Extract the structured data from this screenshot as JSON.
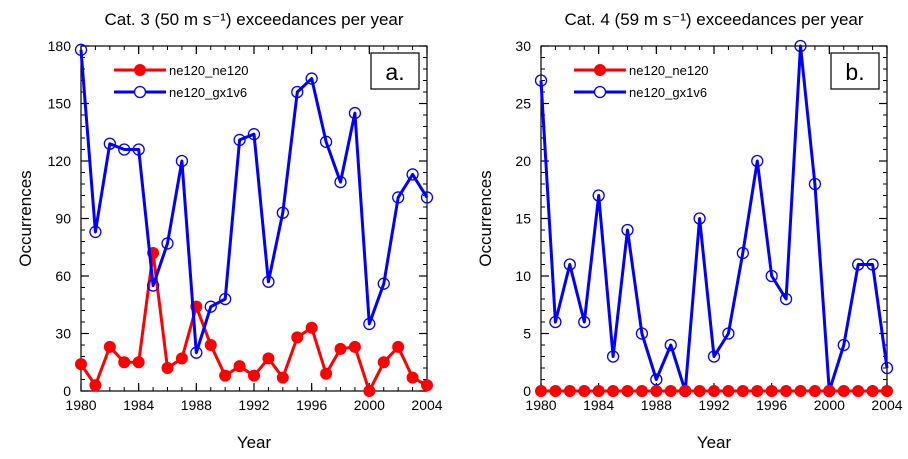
{
  "chart_data": [
    {
      "type": "line",
      "title": "Cat. 3 (50 m s⁻¹) exceedances per year",
      "xlabel": "Year",
      "ylabel": "Occurrences",
      "panel_label": "a.",
      "xlim": [
        1980,
        2004
      ],
      "ylim": [
        0,
        180
      ],
      "xticks": [
        1980,
        1984,
        1988,
        1992,
        1996,
        2000,
        2004
      ],
      "yticks": [
        0,
        30,
        60,
        90,
        120,
        150,
        180
      ],
      "legend_position": "top-left",
      "x": [
        1980,
        1981,
        1982,
        1983,
        1984,
        1985,
        1986,
        1987,
        1988,
        1989,
        1990,
        1991,
        1992,
        1993,
        1994,
        1995,
        1996,
        1997,
        1998,
        1999,
        2000,
        2001,
        2002,
        2003,
        2004
      ],
      "series": [
        {
          "name": "ne120_ne120",
          "color": "#ff0000",
          "marker": "filled-circle",
          "values": [
            14,
            3,
            23,
            15,
            15,
            72,
            12,
            17,
            44,
            24,
            8,
            13,
            8,
            17,
            7,
            28,
            33,
            9,
            22,
            23,
            0,
            15,
            23,
            7,
            3
          ]
        },
        {
          "name": "ne120_gx1v6",
          "color": "#0000ff",
          "marker": "open-circle",
          "values": [
            178,
            83,
            129,
            126,
            126,
            55,
            77,
            120,
            20,
            44,
            48,
            131,
            134,
            57,
            93,
            156,
            163,
            130,
            109,
            145,
            35,
            56,
            101,
            113,
            101
          ]
        }
      ]
    },
    {
      "type": "line",
      "title": "Cat. 4 (59 m s⁻¹) exceedances per year",
      "xlabel": "Year",
      "ylabel": "Occurrences",
      "panel_label": "b.",
      "xlim": [
        1980,
        2004
      ],
      "ylim": [
        0,
        30
      ],
      "xticks": [
        1980,
        1984,
        1988,
        1992,
        1996,
        2000,
        2004
      ],
      "yticks": [
        0,
        5,
        10,
        15,
        20,
        25,
        30
      ],
      "legend_position": "top-left",
      "x": [
        1980,
        1981,
        1982,
        1983,
        1984,
        1985,
        1986,
        1987,
        1988,
        1989,
        1990,
        1991,
        1992,
        1993,
        1994,
        1995,
        1996,
        1997,
        1998,
        1999,
        2000,
        2001,
        2002,
        2003,
        2004
      ],
      "series": [
        {
          "name": "ne120_ne120",
          "color": "#ff0000",
          "marker": "filled-circle",
          "values": [
            0,
            0,
            0,
            0,
            0,
            0,
            0,
            0,
            0,
            0,
            0,
            0,
            0,
            0,
            0,
            0,
            0,
            0,
            0,
            0,
            0,
            0,
            0,
            0,
            0
          ]
        },
        {
          "name": "ne120_gx1v6",
          "color": "#0000ff",
          "marker": "open-circle",
          "values": [
            27,
            6,
            11,
            6,
            17,
            3,
            14,
            5,
            1,
            4,
            0,
            15,
            3,
            5,
            12,
            20,
            10,
            8,
            30,
            18,
            0,
            4,
            11,
            11,
            2
          ]
        }
      ]
    }
  ]
}
